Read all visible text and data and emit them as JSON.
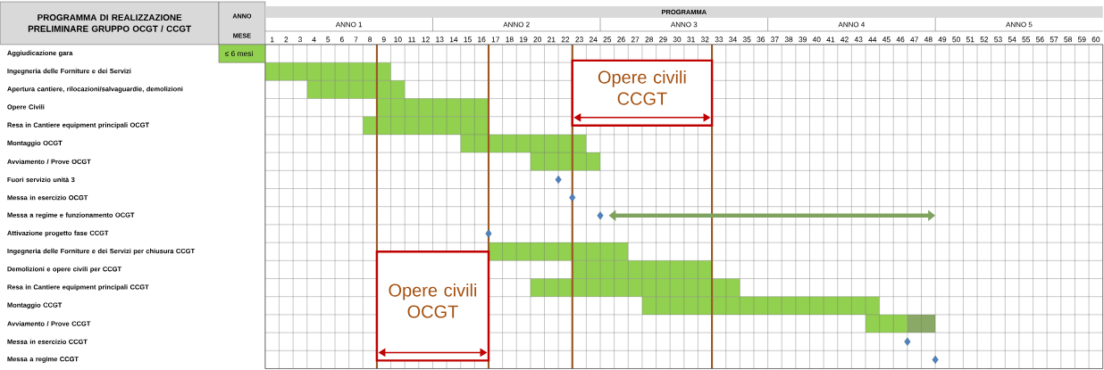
{
  "chart_data": {
    "type": "bar",
    "orientation": "horizontal",
    "title": "PROGRAMMA DI REALIZZAZIONE PRELIMINARE GRUPPO OCGT / CCGT",
    "xlabel": "MESE",
    "categories": [
      "Aggiudicazione gara",
      "Ingegneria delle Forniture e dei Servizi",
      "Apertura cantiere, rilocazioni/salvaguardie, demolizioni",
      "Opere Civili",
      "Resa in Cantiere equipment principali OCGT",
      "Montaggio OCGT",
      "Avviamento / Prove OCGT",
      "Fuori servizio unità 3",
      "Messa in esercizio OCGT",
      "Messa a regime e funzionamento OCGT",
      "Attivazione progetto fase CCGT",
      "Ingegneria delle Forniture e dei Servizi per chiusura CCGT",
      "Demolizioni e opere civili per CCGT",
      "Resa in Cantiere equipment principali CCGT",
      "Montaggio CCGT",
      "Avviamento / Prove CCGT",
      "Messa in esercizio CCGT",
      "Messa a regime CCGT"
    ],
    "xlim": [
      0,
      60
    ],
    "xticks": [
      {
        "value": 0.5,
        "label": "1"
      },
      {
        "value": 1.5,
        "label": "2"
      },
      {
        "value": 2.5,
        "label": "3"
      },
      {
        "value": 3.5,
        "label": "4"
      },
      {
        "value": 4.5,
        "label": "5"
      },
      {
        "value": 5.5,
        "label": "6"
      },
      {
        "value": 6.5,
        "label": "7"
      },
      {
        "value": 7.5,
        "label": "8"
      },
      {
        "value": 8.5,
        "label": "9"
      },
      {
        "value": 9.5,
        "label": "10"
      },
      {
        "value": 10.5,
        "label": "11"
      },
      {
        "value": 11.5,
        "label": "12"
      },
      {
        "value": 12.5,
        "label": "13"
      },
      {
        "value": 13.5,
        "label": "14"
      },
      {
        "value": 14.5,
        "label": "15"
      },
      {
        "value": 15.5,
        "label": "16"
      },
      {
        "value": 16.5,
        "label": "17"
      },
      {
        "value": 17.5,
        "label": "18"
      },
      {
        "value": 18.5,
        "label": "19"
      },
      {
        "value": 19.5,
        "label": "20"
      },
      {
        "value": 20.5,
        "label": "21"
      },
      {
        "value": 21.5,
        "label": "22"
      },
      {
        "value": 22.5,
        "label": "23"
      },
      {
        "value": 23.5,
        "label": "24"
      },
      {
        "value": 24.5,
        "label": "25"
      },
      {
        "value": 25.5,
        "label": "26"
      },
      {
        "value": 26.5,
        "label": "27"
      },
      {
        "value": 27.5,
        "label": "28"
      },
      {
        "value": 28.5,
        "label": "29"
      },
      {
        "value": 29.5,
        "label": "30"
      },
      {
        "value": 30.5,
        "label": "31"
      },
      {
        "value": 31.5,
        "label": "32"
      },
      {
        "value": 32.5,
        "label": "33"
      },
      {
        "value": 33.5,
        "label": "34"
      },
      {
        "value": 34.5,
        "label": "35"
      },
      {
        "value": 35.5,
        "label": "36"
      },
      {
        "value": 36.5,
        "label": "37"
      },
      {
        "value": 37.5,
        "label": "38"
      },
      {
        "value": 38.5,
        "label": "39"
      },
      {
        "value": 39.5,
        "label": "40"
      },
      {
        "value": 40.5,
        "label": "41"
      },
      {
        "value": 41.5,
        "label": "42"
      },
      {
        "value": 42.5,
        "label": "43"
      },
      {
        "value": 43.5,
        "label": "44"
      },
      {
        "value": 44.5,
        "label": "45"
      },
      {
        "value": 45.5,
        "label": "46"
      },
      {
        "value": 46.5,
        "label": "47"
      },
      {
        "value": 47.5,
        "label": "48"
      },
      {
        "value": 48.5,
        "label": "49"
      },
      {
        "value": 49.5,
        "label": "50"
      },
      {
        "value": 50.5,
        "label": "51"
      },
      {
        "value": 51.5,
        "label": "52"
      },
      {
        "value": 52.5,
        "label": "53"
      },
      {
        "value": 53.5,
        "label": "54"
      },
      {
        "value": 54.5,
        "label": "55"
      },
      {
        "value": 55.5,
        "label": "56"
      },
      {
        "value": 56.5,
        "label": "57"
      },
      {
        "value": 57.5,
        "label": "58"
      },
      {
        "value": 58.5,
        "label": "59"
      },
      {
        "value": 59.5,
        "label": "60"
      }
    ],
    "grid": true,
    "series": [
      {
        "color": "#92d050",
        "base": [
          null,
          0,
          3,
          8,
          7,
          14,
          19,
          null,
          null,
          null,
          null,
          16,
          22,
          19,
          27,
          43,
          null,
          null
        ],
        "values": [
          null,
          9,
          7,
          8,
          9,
          9,
          5,
          null,
          null,
          null,
          null,
          10,
          10,
          15,
          17,
          3,
          null,
          null
        ]
      },
      {
        "color": "#8aa866",
        "base": [
          null,
          null,
          null,
          null,
          null,
          null,
          null,
          null,
          null,
          null,
          null,
          null,
          null,
          null,
          null,
          46,
          null,
          null
        ],
        "values": [
          null,
          null,
          null,
          null,
          null,
          null,
          null,
          null,
          null,
          null,
          null,
          null,
          null,
          null,
          null,
          2,
          null,
          null
        ]
      },
      {
        "type": "scatter",
        "marker": "diamond",
        "color": "#4f81bd",
        "values": [
          null,
          null,
          null,
          null,
          null,
          null,
          null,
          21,
          22,
          24,
          16,
          null,
          null,
          null,
          null,
          null,
          46,
          48
        ]
      }
    ],
    "ref_lines": [
      {
        "axis": "x",
        "value": 8,
        "color": "#a5500f"
      },
      {
        "axis": "x",
        "value": 16,
        "color": "#a5500f"
      },
      {
        "axis": "x",
        "value": 22,
        "color": "#a5500f"
      },
      {
        "axis": "x",
        "value": 32,
        "color": "#a5500f"
      }
    ],
    "annotations": [
      "PROGRAMMA",
      "ANNO",
      "ANNO 1",
      "ANNO 2",
      "ANNO 3",
      "ANNO 4",
      "ANNO 5",
      "≤ 6 mesi",
      "Opere civili CCGT",
      "Opere civili OCGT"
    ]
  }
}
